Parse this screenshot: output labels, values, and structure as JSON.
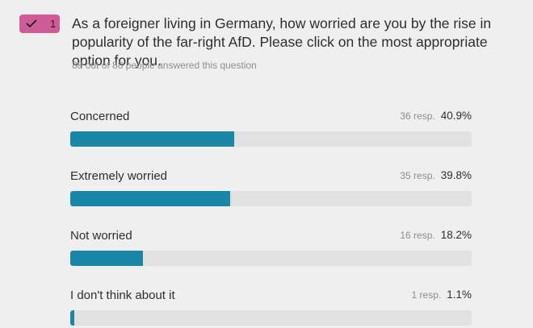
{
  "question": {
    "number": "1",
    "text": "As a foreigner living in Germany, how worried are you by the rise in popularity of the far-right AfD. Please click on the most appropriate option for you.",
    "answered": "88 out of 88 people answered this question",
    "icon": "check-icon"
  },
  "colors": {
    "badge": "#cf5c96",
    "bar_fill": "#1a86a8",
    "bar_track": "#e1e1e1",
    "background": "#efefef"
  },
  "options": [
    {
      "label": "Concerned",
      "responses": "36 resp.",
      "percent": "40.9%",
      "fraction": 0.409
    },
    {
      "label": "Extremely worried",
      "responses": "35 resp.",
      "percent": "39.8%",
      "fraction": 0.398
    },
    {
      "label": "Not worried",
      "responses": "16 resp.",
      "percent": "18.2%",
      "fraction": 0.182
    },
    {
      "label": "I don't think about it",
      "responses": "1 resp.",
      "percent": "1.1%",
      "fraction": 0.011
    }
  ]
}
